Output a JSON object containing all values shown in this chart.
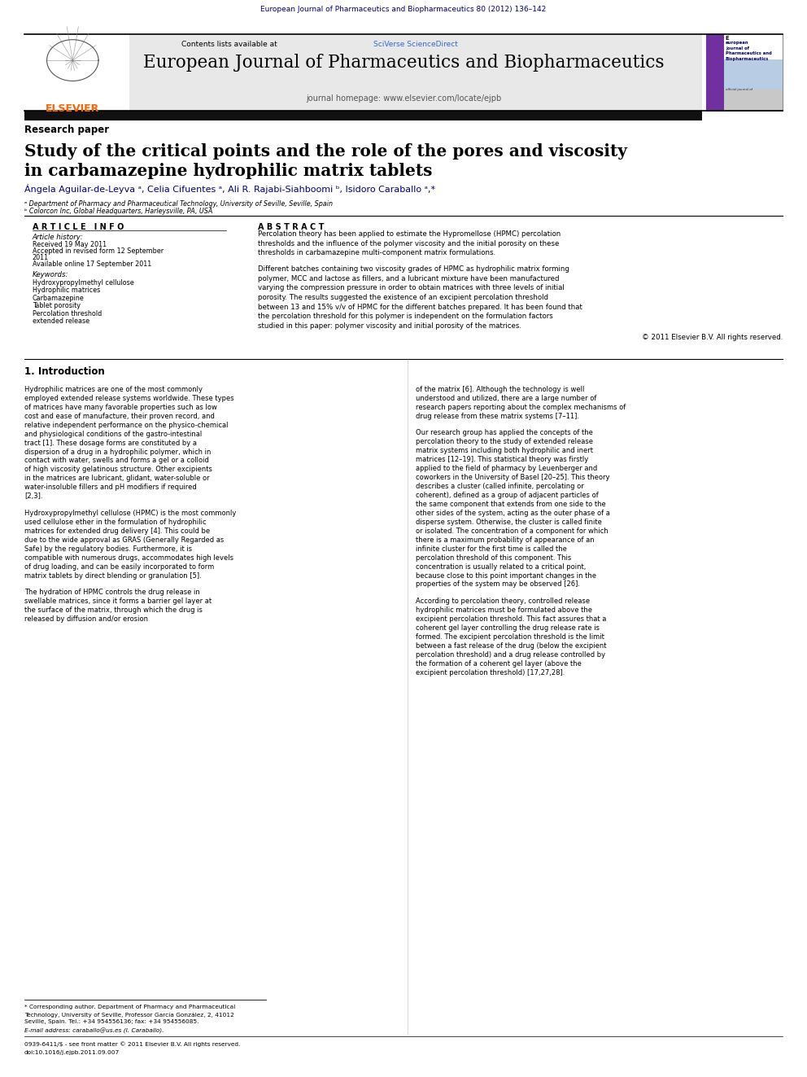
{
  "page_width": 9.92,
  "page_height": 13.23,
  "bg_color": "#ffffff",
  "top_journal_line": "European Journal of Pharmaceutics and Biopharmaceutics 80 (2012) 136–142",
  "journal_title": "European Journal of Pharmaceutics and Biopharmaceutics",
  "journal_homepage": "journal homepage: www.elsevier.com/locate/ejpb",
  "contents_text": "Contents lists available at ",
  "contents_link": "SciVerse ScienceDirect",
  "paper_type": "Research paper",
  "article_title_line1": "Study of the critical points and the role of the pores and viscosity",
  "article_title_line2": "in carbamazepine hydrophilic matrix tablets",
  "authors": "Ángela Aguilar-de-Leyva ᵃ, Celia Cifuentes ᵃ, Ali R. Rajabi-Siahboomi ᵇ, Isidoro Caraballo ᵃ,*",
  "affil_a": "ᵃ Department of Pharmacy and Pharmaceutical Technology, University of Seville, Seville, Spain",
  "affil_b": "ᵇ Colorcon Inc, Global Headquarters, Harleysville, PA, USA",
  "article_info_header": "A R T I C L E   I N F O",
  "abstract_header": "A B S T R A C T",
  "article_history_label": "Article history:",
  "received": "Received 19 May 2011",
  "accepted": "Accepted in revised form 12 September",
  "accepted2": "2011",
  "available": "Available online 17 September 2011",
  "keywords_label": "Keywords:",
  "keywords": [
    "Hydroxypropylmethyl cellulose",
    "Hydrophilic matrices",
    "Carbamazepine",
    "Tablet porosity",
    "Percolation threshold",
    "extended release"
  ],
  "abstract_para1": "Percolation theory has been applied to estimate the Hypromellose (HPMC) percolation thresholds and the influence of the polymer viscosity and the initial porosity on these thresholds in carbamazepine multi-component matrix formulations.",
  "abstract_para2": "Different batches containing two viscosity grades of HPMC as hydrophilic matrix forming polymer, MCC and lactose as fillers, and a lubricant mixture have been manufactured varying the compression pressure in order to obtain matrices with three levels of initial porosity. The results suggested the existence of an excipient percolation threshold between 13 and 15% v/v of HPMC for the different batches prepared. It has been found that the percolation threshold for this polymer is independent on the formulation factors studied in this paper: polymer viscosity and initial porosity of the matrices.",
  "abstract_copy": "© 2011 Elsevier B.V. All rights reserved.",
  "intro_header": "1. Introduction",
  "intro_col1_paras": [
    "Hydrophilic matrices are one of the most commonly employed extended release systems worldwide. These types of matrices have many favorable properties such as low cost and ease of manufacture, their proven record, and relative independent performance on the physico-chemical and physiological conditions of the gastro-intestinal tract [1]. These dosage forms are constituted by a dispersion of a drug in a hydrophilic polymer, which in contact with water, swells and forms a gel or a colloid of high viscosity gelatinous structure. Other excipients in the matrices are lubricant, glidant, water-soluble or water-insoluble fillers and pH modifiers if required [2,3].",
    "Hydroxypropylmethyl cellulose (HPMC) is the most commonly used cellulose ether in the formulation of hydrophilic matrices for extended drug delivery [4]. This could be due to the wide approval as GRAS (Generally Regarded as Safe) by the regulatory bodies. Furthermore, it is compatible with numerous drugs, accommodates high levels of drug loading, and can be easily incorporated to form matrix tablets by direct blending or granulation [5].",
    "The hydration of HPMC controls the drug release in swellable matrices, since it forms a barrier gel layer at the surface of the matrix, through which the drug is released by diffusion and/or erosion"
  ],
  "intro_col2_paras": [
    "of the matrix [6]. Although the technology is well understood and utilized, there are a large number of research papers reporting about the complex mechanisms of drug release from these matrix systems [7–11].",
    "Our research group has applied the concepts of the percolation theory to the study of extended release matrix systems including both hydrophilic and inert matrices [12–19]. This statistical theory was firstly applied to the field of pharmacy by Leuenberger and coworkers in the University of Basel [20–25]. This theory describes a cluster (called infinite, percolating or coherent), defined as a group of adjacent particles of the same component that extends from one side to the other sides of the system, acting as the outer phase of a disperse system. Otherwise, the cluster is called finite or isolated. The concentration of a component for which there is a maximum probability of appearance of an infinite cluster for the first time is called the percolation threshold of this component. This concentration is usually related to a critical point, because close to this point important changes in the properties of the system may be observed [26].",
    "According to percolation theory, controlled release hydrophilic matrices must be formulated above the excipient percolation threshold. This fact assures that a coherent gel layer controlling the drug release rate is formed. The excipient percolation threshold is the limit between a fast release of the drug (below the excipient percolation threshold) and a drug release controlled by the formation of a coherent gel layer (above the excipient percolation threshold) [17,27,28]."
  ],
  "footnote_star": "* Corresponding author. Department of Pharmacy and Pharmaceutical Technology, University of Seville, Professor García González, 2, 41012 Seville, Spain. Tel.:",
  "footnote_star2": "+34 954556136; fax: +34 954556085.",
  "footnote_email": "E-mail address: caraballo@us.es (I. Caraballo).",
  "footer1": "0939-6411/$ - see front matter © 2011 Elsevier B.V. All rights reserved.",
  "footer2": "doi:10.1016/j.ejpb.2011.09.007",
  "elsevier_color": "#FF6200",
  "navy_color": "#000080",
  "header_bg": "#e8e8e8",
  "sci_verse_color": "#3366cc",
  "purple_strip": "#7030a0",
  "cover_text_color": "#000066"
}
